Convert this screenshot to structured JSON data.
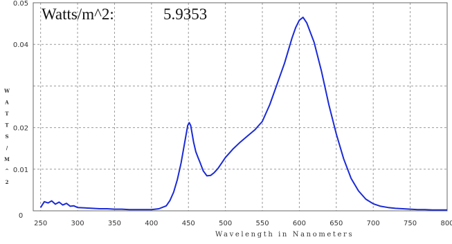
{
  "readout": {
    "label": "Watts/m^2:",
    "value": "5.9353"
  },
  "chart_data": {
    "type": "line",
    "xlabel": "Wavelength in Nanometers",
    "ylabel": "WATTS/M^2",
    "xlim": [
      240,
      800
    ],
    "ylim": [
      0,
      0.05
    ],
    "x_ticks": [
      250,
      300,
      350,
      400,
      450,
      500,
      550,
      600,
      650,
      700,
      750,
      800
    ],
    "y_ticks": [
      {
        "value": 0,
        "label": "0"
      },
      {
        "value": 0.01,
        "label": "0.01"
      },
      {
        "value": 0.02,
        "label": "0.02"
      },
      {
        "value": 0.04,
        "label": "0.04"
      },
      {
        "value": 0.05,
        "label": "0.05"
      }
    ],
    "grid": true,
    "series": [
      {
        "color": "#1a2ad6",
        "x": [
          250,
          255,
          260,
          265,
          270,
          275,
          280,
          285,
          290,
          295,
          300,
          310,
          320,
          330,
          340,
          350,
          360,
          370,
          380,
          390,
          400,
          410,
          420,
          425,
          430,
          435,
          440,
          443,
          446,
          449,
          451,
          453,
          455,
          457,
          460,
          463,
          466,
          470,
          475,
          480,
          485,
          490,
          495,
          500,
          510,
          520,
          530,
          540,
          550,
          560,
          570,
          580,
          590,
          595,
          600,
          605,
          610,
          620,
          630,
          640,
          650,
          660,
          670,
          680,
          690,
          700,
          710,
          720,
          730,
          740,
          750,
          760,
          770,
          780,
          790,
          800
        ],
        "y": [
          0.0008,
          0.0022,
          0.0019,
          0.0024,
          0.0016,
          0.0021,
          0.0014,
          0.0018,
          0.0011,
          0.0012,
          0.0008,
          0.0007,
          0.0006,
          0.0005,
          0.0005,
          0.0004,
          0.0004,
          0.0003,
          0.0003,
          0.0003,
          0.0003,
          0.0005,
          0.0012,
          0.0025,
          0.0045,
          0.0075,
          0.0115,
          0.0145,
          0.0175,
          0.0205,
          0.0212,
          0.0205,
          0.0185,
          0.0165,
          0.0142,
          0.0128,
          0.0115,
          0.0096,
          0.0084,
          0.0085,
          0.0092,
          0.0102,
          0.0115,
          0.0128,
          0.0148,
          0.0165,
          0.018,
          0.0195,
          0.0215,
          0.0255,
          0.0305,
          0.0355,
          0.0415,
          0.044,
          0.0458,
          0.0465,
          0.0452,
          0.0405,
          0.0335,
          0.0255,
          0.0185,
          0.0125,
          0.0078,
          0.0048,
          0.0028,
          0.0017,
          0.0011,
          0.0008,
          0.0006,
          0.0005,
          0.0004,
          0.0003,
          0.0003,
          0.0002,
          0.0002,
          0.0002
        ]
      }
    ]
  }
}
